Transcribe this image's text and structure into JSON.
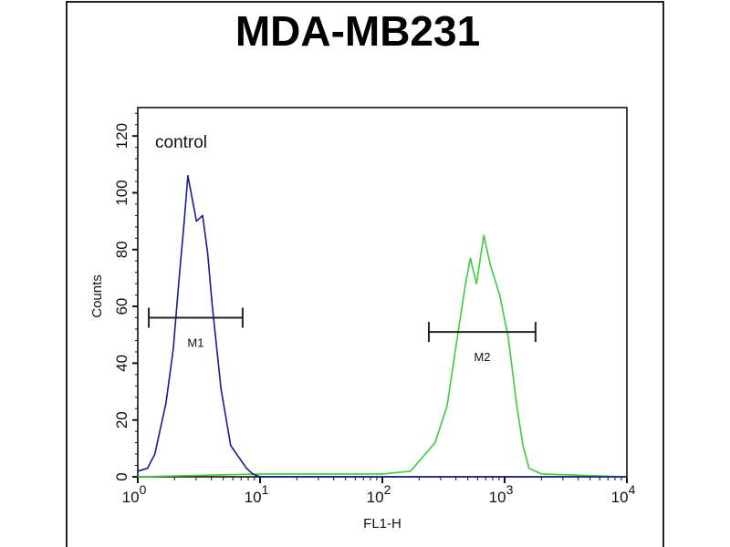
{
  "chart_data": {
    "type": "line",
    "title": "MDA-MB231",
    "xlabel": "FL1-H",
    "ylabel": "Counts",
    "x_scale": "log",
    "xlim": [
      1,
      10000
    ],
    "ylim": [
      0,
      130
    ],
    "x_ticks": [
      {
        "value": 1,
        "base": "10",
        "exp": "0"
      },
      {
        "value": 10,
        "base": "10",
        "exp": "1"
      },
      {
        "value": 100,
        "base": "10",
        "exp": "2"
      },
      {
        "value": 1000,
        "base": "10",
        "exp": "3"
      },
      {
        "value": 10000,
        "base": "10",
        "exp": "4"
      }
    ],
    "y_ticks": [
      "0",
      "20",
      "40",
      "60",
      "80",
      "100",
      "120"
    ],
    "annotation": "control",
    "series": [
      {
        "color": "#1a1a8c",
        "x": [
          1.0,
          1.2,
          1.38,
          1.7,
          1.95,
          2.19,
          2.4,
          2.57,
          3.02,
          3.39,
          3.72,
          4.07,
          4.79,
          5.75,
          7.76,
          8.71,
          10,
          100,
          1000,
          10000
        ],
        "y": [
          2,
          3,
          8,
          26,
          45,
          71,
          90,
          106,
          90,
          92,
          79,
          60,
          31,
          11,
          3,
          1,
          0,
          0,
          0,
          0
        ]
      },
      {
        "color": "#3ccc3c",
        "x": [
          1,
          10,
          100,
          170,
          270,
          339,
          400,
          479,
          525,
          589,
          676,
          759,
          912,
          1072,
          1259,
          1413,
          1585,
          2000,
          10000
        ],
        "y": [
          0,
          1,
          1,
          2,
          12,
          25,
          46,
          68,
          77,
          68,
          85,
          75,
          64,
          49,
          25,
          11,
          3,
          1,
          0
        ]
      }
    ],
    "markers": [
      {
        "label": "M1",
        "x_start": 1.23,
        "x_end": 7.2,
        "y": 56
      },
      {
        "label": "M2",
        "x_start": 240,
        "x_end": 1790,
        "y": 51
      }
    ],
    "grid": false,
    "legend": "none"
  }
}
